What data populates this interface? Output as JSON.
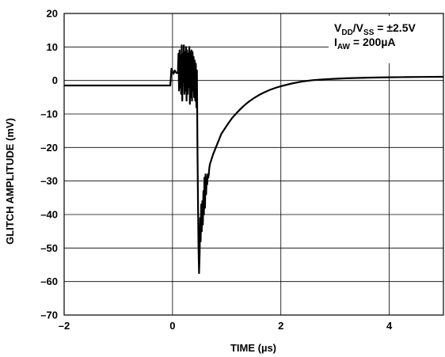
{
  "chart_data": {
    "type": "line",
    "title": "",
    "xlabel": "TIME (µs)",
    "ylabel": "GLITCH AMPLITUDE (mV)",
    "xlim": [
      -2,
      5
    ],
    "ylim": [
      -70,
      20
    ],
    "x_ticks": [
      -2,
      0,
      2,
      4
    ],
    "x_tick_labels": [
      "–2",
      "0",
      "2",
      "4"
    ],
    "y_ticks": [
      20,
      10,
      0,
      -10,
      -20,
      -30,
      -40,
      -50,
      -60,
      -70
    ],
    "y_tick_labels": [
      "20",
      "10",
      "0",
      "–10",
      "–20",
      "–30",
      "–40",
      "–50",
      "–60",
      "–70"
    ],
    "grid": true,
    "annotation": {
      "line1": {
        "v1": "V",
        "dd": "DD",
        "slash": "/V",
        "ss": "SS",
        "rest": " = ±2.5V"
      },
      "line2": {
        "i": "I",
        "aw": "AW",
        "rest": " = 200µA"
      }
    },
    "series": [
      {
        "color": "#000000",
        "x": [
          -2,
          -1.5,
          -1,
          -0.5,
          -0.1,
          -0.04,
          -0.02,
          0.0,
          0.02,
          0.04,
          0.06,
          0.08,
          0.1,
          0.11,
          0.12,
          0.13,
          0.14,
          0.15,
          0.16,
          0.17,
          0.18,
          0.19,
          0.2,
          0.21,
          0.22,
          0.23,
          0.24,
          0.25,
          0.26,
          0.27,
          0.28,
          0.29,
          0.3,
          0.31,
          0.32,
          0.33,
          0.34,
          0.35,
          0.36,
          0.37,
          0.38,
          0.39,
          0.4,
          0.41,
          0.42,
          0.43,
          0.44,
          0.45,
          0.46,
          0.47,
          0.48,
          0.49,
          0.5,
          0.51,
          0.52,
          0.53,
          0.54,
          0.55,
          0.56,
          0.57,
          0.58,
          0.59,
          0.6,
          0.61,
          0.62,
          0.63,
          0.64,
          0.65,
          0.66,
          0.67,
          0.68,
          0.69,
          0.7,
          0.72,
          0.75,
          0.8,
          0.85,
          0.9,
          1.0,
          1.1,
          1.2,
          1.3,
          1.4,
          1.5,
          1.6,
          1.7,
          1.8,
          1.9,
          2.0,
          2.2,
          2.4,
          2.6,
          2.8,
          3.0,
          3.2,
          3.4,
          3.6,
          3.8,
          4.0,
          4.3,
          4.6,
          5.0
        ],
        "y": [
          -1.5,
          -1.5,
          -1.5,
          -1.5,
          -1.5,
          -1.5,
          3.5,
          2.5,
          2.0,
          3.0,
          2.5,
          2.2,
          2.5,
          8.0,
          -3.0,
          9.0,
          -2.0,
          7.5,
          -4.0,
          10.5,
          -6.0,
          8.0,
          0.0,
          10.5,
          -4.0,
          8.5,
          -3.0,
          10.0,
          -6.0,
          9.0,
          -4.0,
          8.0,
          -2.0,
          10.0,
          -7.0,
          8.5,
          -5.0,
          9.0,
          -6.0,
          8.5,
          -3.0,
          7.0,
          -5.0,
          6.0,
          -6.0,
          5.0,
          -8.0,
          3.0,
          -18.0,
          -35.0,
          -50.0,
          -57.5,
          -52.0,
          -41.0,
          -48.0,
          -37.0,
          -45.0,
          -36.0,
          -43.0,
          -33.0,
          -40.0,
          -29.0,
          -38.0,
          -28.0,
          -34.0,
          -29.0,
          -31.0,
          -28.0,
          -29.0,
          -28.0,
          -26.0,
          -25.0,
          -24.5,
          -23.5,
          -22.0,
          -20.0,
          -18.0,
          -16.0,
          -13.5,
          -11.2,
          -9.4,
          -7.8,
          -6.4,
          -5.3,
          -4.3,
          -3.5,
          -2.8,
          -2.2,
          -1.7,
          -0.9,
          -0.3,
          0.1,
          0.35,
          0.5,
          0.65,
          0.75,
          0.85,
          0.9,
          0.95,
          1.0,
          1.05,
          1.1
        ]
      }
    ]
  }
}
